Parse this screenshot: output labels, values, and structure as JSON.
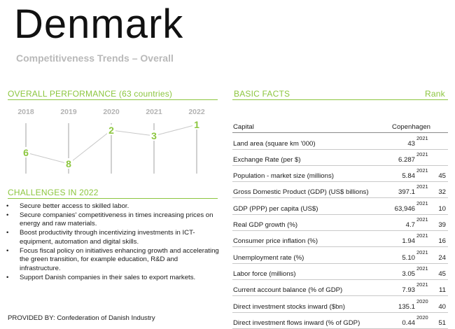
{
  "header": {
    "country": "Denmark",
    "subtitle": "Competitiveness Trends – Overall"
  },
  "overall_performance": {
    "title": "OVERALL PERFORMANCE (63 countries)",
    "years": [
      "2018",
      "2019",
      "2020",
      "2021",
      "2022"
    ],
    "ranks": [
      "6",
      "8",
      "2",
      "3",
      "1"
    ],
    "colors": {
      "accent": "#8cc63f",
      "tick": "#a0a0a0",
      "line": "#c8c8c8"
    }
  },
  "challenges": {
    "title": "CHALLENGES IN 2022",
    "items": [
      "Secure better access to skilled labor.",
      "Secure companies' competitiveness in times increasing prices on energy and raw materials.",
      "Boost productivity through incentivizing investments in ICT-equipment, automation and digital skills.",
      "Focus fiscal policy on initiatives enhancing growth and accelerating the green transition, for example education, R&D and infrastructure.",
      "Support Danish companies in their sales to export markets."
    ]
  },
  "basic_facts": {
    "title": "BASIC FACTS",
    "rank_label": "Rank",
    "capital_label": "Capital",
    "capital_value": "Copenhagen",
    "rows": [
      {
        "label": "Land area (square km '000)",
        "value": "43",
        "year": "2021",
        "rank": ""
      },
      {
        "label": "Exchange Rate (per $)",
        "value": "6.287",
        "year": "2021",
        "rank": ""
      },
      {
        "label": "Population - market size (millions)",
        "value": "5.84",
        "year": "2021",
        "rank": "45"
      },
      {
        "label": "Gross Domestic Product (GDP) (US$ billions)",
        "value": "397.1",
        "year": "2021",
        "rank": "32"
      },
      {
        "label": "GDP (PPP) per capita (US$)",
        "value": "63,946",
        "year": "2021",
        "rank": "10"
      },
      {
        "label": "Real GDP growth (%)",
        "value": "4.7",
        "year": "2021",
        "rank": "39"
      },
      {
        "label": "Consumer price inflation (%)",
        "value": "1.94",
        "year": "2021",
        "rank": "16"
      },
      {
        "label": "Unemployment rate (%)",
        "value": "5.10",
        "year": "2021",
        "rank": "24"
      },
      {
        "label": "Labor force (millions)",
        "value": "3.05",
        "year": "2021",
        "rank": "45"
      },
      {
        "label": "Current account balance (% of GDP)",
        "value": "7.93",
        "year": "2021",
        "rank": "11"
      },
      {
        "label": "Direct investment stocks inward ($bn)",
        "value": "135.1",
        "year": "2020",
        "rank": "40"
      },
      {
        "label": "Direct investment flows inward (% of GDP)",
        "value": "0.44",
        "year": "2020",
        "rank": "51"
      }
    ]
  },
  "footer": {
    "provided_by": "PROVIDED BY: Confederation of Danish Industry"
  }
}
